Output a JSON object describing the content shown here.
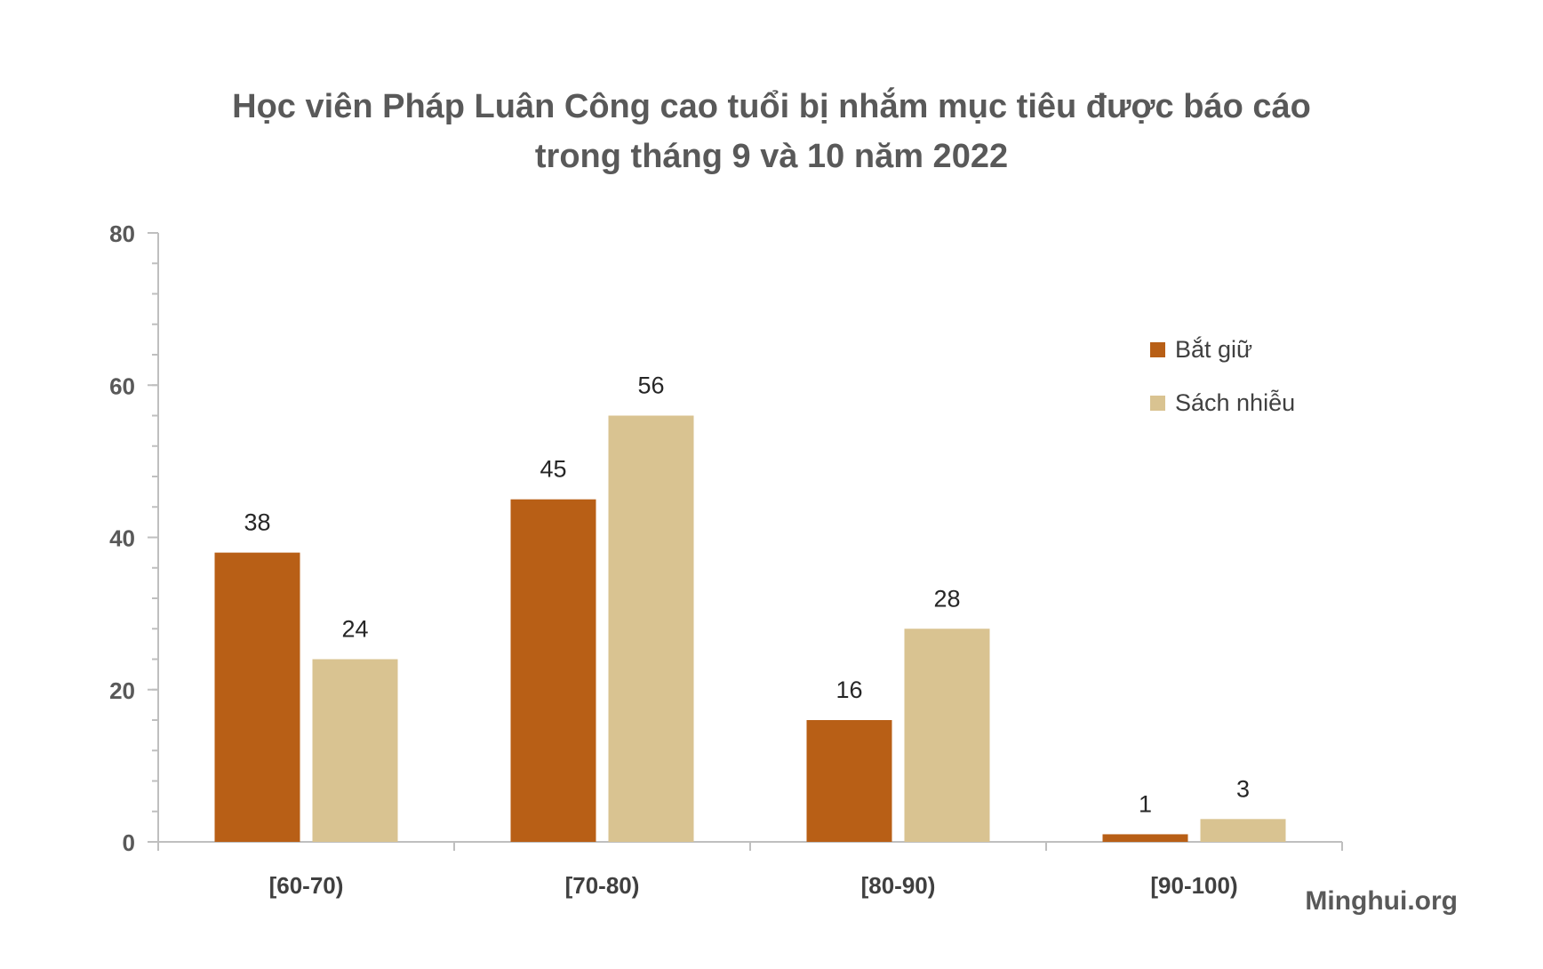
{
  "chart_data": {
    "type": "bar",
    "title_lines": [
      "Học viên Pháp Luân Công cao tuổi bị nhắm mục tiêu được báo cáo",
      "trong tháng 9 và 10 năm 2022"
    ],
    "categories": [
      "[60-70)",
      "[70-80)",
      "[80-90)",
      "[90-100)"
    ],
    "series": [
      {
        "name": "Bắt giữ",
        "color": "#B85F16",
        "values": [
          38,
          45,
          16,
          1
        ]
      },
      {
        "name": "Sách nhiễu",
        "color": "#D9C391",
        "values": [
          24,
          56,
          28,
          3
        ]
      }
    ],
    "ylim": [
      0,
      80
    ],
    "yticks": [
      0,
      20,
      40,
      60,
      80
    ],
    "yminor_step": 4,
    "grid": false,
    "legend_position": "right",
    "source": "Minghui.org"
  }
}
